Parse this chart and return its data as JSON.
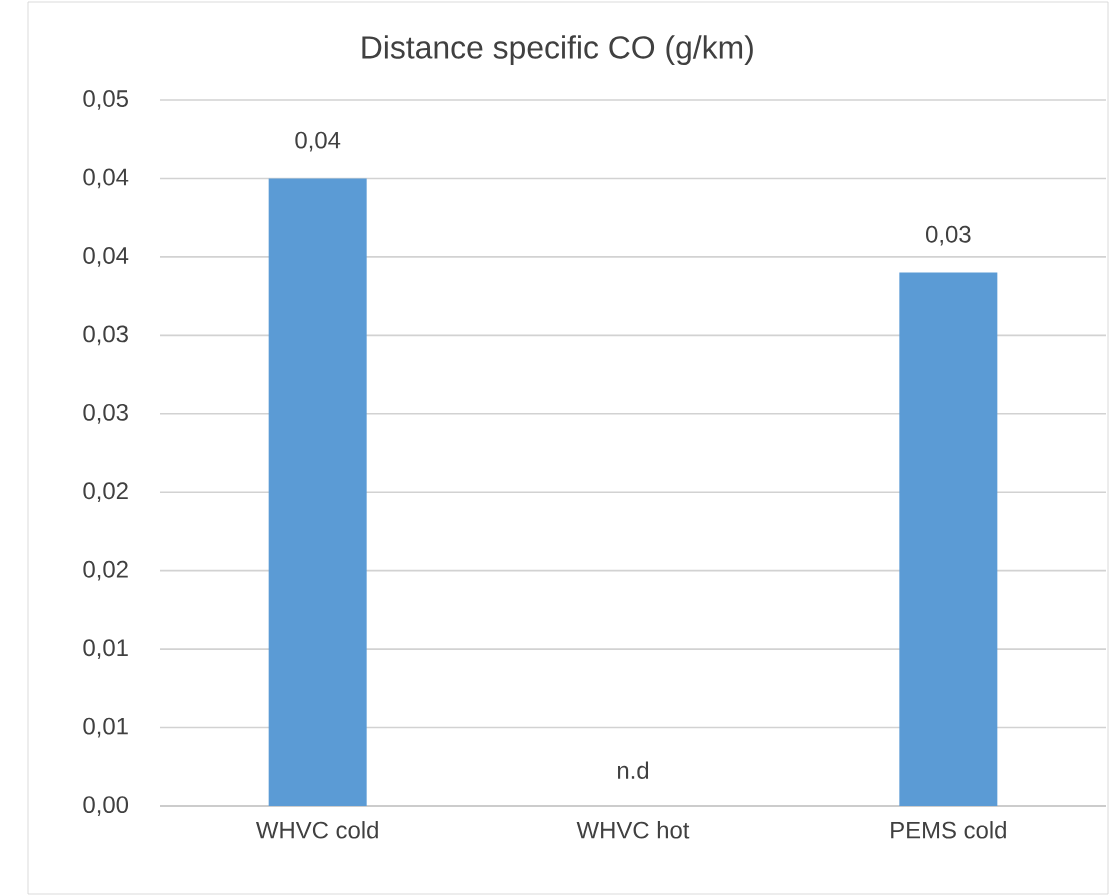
{
  "chart_data": {
    "type": "bar",
    "title": "Distance specific CO (g/km)",
    "categories": [
      "WHVC cold",
      "WHVC hot",
      "PEMS cold"
    ],
    "values": [
      0.04,
      null,
      0.034
    ],
    "value_labels": [
      "0,04",
      "n.d",
      "0,03"
    ],
    "color": "#5b9bd5",
    "ylim": [
      0,
      0.045
    ],
    "yticks": [
      {
        "value": 0,
        "label": "0,00"
      },
      {
        "value": 0.005,
        "label": "0,01"
      },
      {
        "value": 0.01,
        "label": "0,01"
      },
      {
        "value": 0.015,
        "label": "0,02"
      },
      {
        "value": 0.02,
        "label": "0,02"
      },
      {
        "value": 0.025,
        "label": "0,03"
      },
      {
        "value": 0.03,
        "label": "0,03"
      },
      {
        "value": 0.035,
        "label": "0,04"
      },
      {
        "value": 0.04,
        "label": "0,04"
      },
      {
        "value": 0.045,
        "label": "0,05"
      }
    ],
    "grid": "y"
  }
}
